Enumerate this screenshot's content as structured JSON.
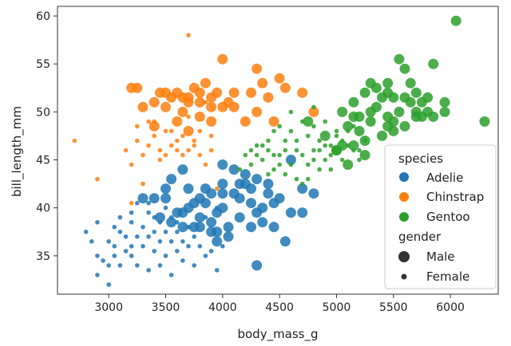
{
  "chart_data": {
    "type": "scatter",
    "xlabel": "body_mass_g",
    "ylabel": "bill_length_mm",
    "xlim": [
      2550,
      6420
    ],
    "ylim": [
      31,
      61
    ],
    "x_ticks": [
      3000,
      3500,
      4000,
      4500,
      5000,
      5500,
      6000
    ],
    "y_ticks": [
      35,
      40,
      45,
      50,
      55,
      60
    ],
    "legend": {
      "placement": "lower-right",
      "hue_title": "species",
      "size_title": "gender",
      "hue_entries": [
        {
          "name": "Adelie",
          "color": "#1f77b4"
        },
        {
          "name": "Chinstrap",
          "color": "#ff7f0e"
        },
        {
          "name": "Gentoo",
          "color": "#2ca02c"
        }
      ],
      "size_entries": [
        {
          "name": "Male",
          "size": "large"
        },
        {
          "name": "Female",
          "size": "small"
        }
      ]
    },
    "series": [
      {
        "name": "Adelie",
        "color": "#1f77b4",
        "male": [
          [
            3300,
            41.0
          ],
          [
            3400,
            41.0
          ],
          [
            3500,
            42.0
          ],
          [
            3550,
            38.5
          ],
          [
            3650,
            39.5
          ],
          [
            3700,
            42.0
          ],
          [
            3750,
            40.5
          ],
          [
            3800,
            38.0
          ],
          [
            3800,
            39.0
          ],
          [
            3850,
            40.5
          ],
          [
            3900,
            41.5
          ],
          [
            3900,
            38.5
          ],
          [
            3950,
            39.5
          ],
          [
            3950,
            37.5
          ],
          [
            4000,
            41.5
          ],
          [
            4000,
            40.0
          ],
          [
            4050,
            38.0
          ],
          [
            4100,
            41.5
          ],
          [
            4150,
            41.0
          ],
          [
            4200,
            42.5
          ],
          [
            4250,
            40.5
          ],
          [
            4300,
            39.5
          ],
          [
            4350,
            40.0
          ],
          [
            4400,
            42.5
          ],
          [
            4450,
            38.0
          ],
          [
            4500,
            41.0
          ],
          [
            4600,
            39.5
          ],
          [
            4700,
            42.0
          ],
          [
            3950,
            36.5
          ],
          [
            3550,
            43.0
          ],
          [
            4200,
            43.5
          ],
          [
            3650,
            44.0
          ],
          [
            4000,
            44.5
          ],
          [
            3450,
            39.0
          ],
          [
            4300,
            43.0
          ],
          [
            4050,
            37.0
          ],
          [
            4400,
            41.5
          ],
          [
            4550,
            36.5
          ],
          [
            4600,
            45.0
          ],
          [
            3850,
            42.0
          ],
          [
            3500,
            41.0
          ],
          [
            4150,
            39.0
          ],
          [
            4700,
            39.5
          ],
          [
            3900,
            37.5
          ],
          [
            4450,
            40.5
          ],
          [
            4250,
            42.0
          ],
          [
            4100,
            44.0
          ],
          [
            3700,
            40.0
          ],
          [
            4800,
            41.5
          ],
          [
            3650,
            38.0
          ],
          [
            4000,
            42.5
          ],
          [
            4350,
            38.5
          ],
          [
            3800,
            41.0
          ],
          [
            4150,
            42.5
          ],
          [
            4250,
            38.0
          ],
          [
            3600,
            39.5
          ],
          [
            3750,
            38.0
          ],
          [
            4300,
            34.0
          ]
        ],
        "female": [
          [
            2850,
            36.5
          ],
          [
            2900,
            35.0
          ],
          [
            2900,
            38.5
          ],
          [
            2950,
            34.5
          ],
          [
            3000,
            32.0
          ],
          [
            3000,
            36.5
          ],
          [
            3050,
            35.0
          ],
          [
            3050,
            38.0
          ],
          [
            3100,
            39.0
          ],
          [
            3150,
            37.0
          ],
          [
            3150,
            35.5
          ],
          [
            3200,
            38.5
          ],
          [
            3200,
            36.0
          ],
          [
            3250,
            37.0
          ],
          [
            3250,
            40.5
          ],
          [
            3300,
            36.0
          ],
          [
            3300,
            38.0
          ],
          [
            3350,
            39.5
          ],
          [
            3350,
            37.0
          ],
          [
            3400,
            35.5
          ],
          [
            3400,
            39.0
          ],
          [
            3450,
            36.5
          ],
          [
            3450,
            38.5
          ],
          [
            3500,
            37.5
          ],
          [
            3500,
            35.0
          ],
          [
            3550,
            39.0
          ],
          [
            3550,
            36.5
          ],
          [
            3600,
            37.5
          ],
          [
            3600,
            35.5
          ],
          [
            3650,
            36.5
          ],
          [
            3700,
            38.0
          ],
          [
            3700,
            36.0
          ],
          [
            3750,
            37.0
          ],
          [
            3800,
            36.0
          ],
          [
            3850,
            39.0
          ],
          [
            3900,
            35.5
          ],
          [
            3950,
            40.0
          ],
          [
            4000,
            36.0
          ],
          [
            2900,
            33.0
          ],
          [
            3000,
            34.0
          ],
          [
            3100,
            34.0
          ],
          [
            3200,
            35.0
          ],
          [
            3250,
            34.0
          ],
          [
            3350,
            33.5
          ],
          [
            3450,
            34.0
          ],
          [
            3550,
            33.0
          ],
          [
            3650,
            34.5
          ],
          [
            3750,
            34.0
          ],
          [
            3850,
            35.0
          ],
          [
            3950,
            33.5
          ],
          [
            3500,
            40.0
          ],
          [
            3350,
            40.5
          ],
          [
            3100,
            37.5
          ],
          [
            3200,
            39.5
          ],
          [
            3400,
            37.5
          ],
          [
            3600,
            38.5
          ],
          [
            2800,
            37.5
          ],
          [
            3050,
            36.0
          ]
        ]
      },
      {
        "name": "Chinstrap",
        "color": "#ff7f0e",
        "male": [
          [
            3250,
            52.5
          ],
          [
            3300,
            50.5
          ],
          [
            3450,
            52.0
          ],
          [
            3400,
            48.5
          ],
          [
            3500,
            50.5
          ],
          [
            3550,
            51.5
          ],
          [
            3600,
            49.0
          ],
          [
            3650,
            51.5
          ],
          [
            3700,
            51.5
          ],
          [
            3700,
            48.0
          ],
          [
            3750,
            52.5
          ],
          [
            3800,
            51.0
          ],
          [
            3800,
            49.5
          ],
          [
            3850,
            53.0
          ],
          [
            3900,
            50.5
          ],
          [
            3900,
            49.0
          ],
          [
            3950,
            52.0
          ],
          [
            4000,
            50.5
          ],
          [
            4000,
            55.5
          ],
          [
            4050,
            51.0
          ],
          [
            4100,
            50.5
          ],
          [
            4250,
            52.0
          ],
          [
            4300,
            50.0
          ],
          [
            4350,
            53.0
          ],
          [
            4400,
            51.5
          ],
          [
            4450,
            49.0
          ],
          [
            4500,
            53.5
          ],
          [
            4550,
            52.5
          ],
          [
            4700,
            52.0
          ],
          [
            4800,
            50.0
          ],
          [
            3400,
            51.0
          ],
          [
            3600,
            52.0
          ],
          [
            4200,
            49.0
          ],
          [
            3700,
            51.0
          ],
          [
            3650,
            50.0
          ],
          [
            3500,
            52.0
          ],
          [
            4100,
            52.0
          ],
          [
            4300,
            54.5
          ],
          [
            3200,
            52.5
          ],
          [
            3800,
            52.0
          ],
          [
            3900,
            51.5
          ]
        ],
        "female": [
          [
            2700,
            47.0
          ],
          [
            2900,
            43.0
          ],
          [
            3250,
            47.0
          ],
          [
            3300,
            45.5
          ],
          [
            3350,
            46.5
          ],
          [
            3400,
            47.5
          ],
          [
            3450,
            46.0
          ],
          [
            3500,
            45.5
          ],
          [
            3550,
            46.5
          ],
          [
            3600,
            47.0
          ],
          [
            3650,
            45.5
          ],
          [
            3700,
            46.0
          ],
          [
            3750,
            46.5
          ],
          [
            3800,
            45.5
          ],
          [
            3850,
            44.5
          ],
          [
            3900,
            46.0
          ],
          [
            3350,
            49.0
          ],
          [
            3450,
            45.0
          ],
          [
            3550,
            48.0
          ],
          [
            3650,
            47.5
          ],
          [
            3200,
            44.5
          ],
          [
            3250,
            48.5
          ],
          [
            3300,
            42.5
          ],
          [
            3700,
            49.5
          ],
          [
            3750,
            47.0
          ],
          [
            3800,
            48.0
          ],
          [
            3900,
            47.5
          ],
          [
            3200,
            40.5
          ],
          [
            3500,
            48.0
          ],
          [
            3700,
            58.0
          ],
          [
            3150,
            46.0
          ],
          [
            3400,
            49.0
          ],
          [
            3600,
            46.0
          ],
          [
            3950,
            42.0
          ],
          [
            3850,
            51.0
          ]
        ]
      },
      {
        "name": "Gentoo",
        "color": "#2ca02c",
        "male": [
          [
            4750,
            49.0
          ],
          [
            4900,
            47.5
          ],
          [
            5000,
            46.0
          ],
          [
            5050,
            46.5
          ],
          [
            5100,
            48.5
          ],
          [
            5150,
            46.5
          ],
          [
            5200,
            49.5
          ],
          [
            5250,
            47.0
          ],
          [
            5300,
            49.0
          ],
          [
            5350,
            50.5
          ],
          [
            5400,
            47.5
          ],
          [
            5450,
            49.5
          ],
          [
            5500,
            51.5
          ],
          [
            5500,
            48.0
          ],
          [
            5550,
            50.0
          ],
          [
            5600,
            54.5
          ],
          [
            5600,
            48.5
          ],
          [
            5650,
            51.0
          ],
          [
            5700,
            52.0
          ],
          [
            5700,
            49.5
          ],
          [
            5750,
            49.5
          ],
          [
            5800,
            50.0
          ],
          [
            5850,
            55.0
          ],
          [
            5950,
            50.0
          ],
          [
            6050,
            59.5
          ],
          [
            6300,
            49.0
          ],
          [
            5550,
            55.5
          ],
          [
            5450,
            53.0
          ],
          [
            5300,
            50.0
          ],
          [
            5000,
            46.0
          ],
          [
            5100,
            44.5
          ],
          [
            5250,
            45.5
          ],
          [
            5400,
            51.5
          ],
          [
            5150,
            51.0
          ],
          [
            5650,
            53.0
          ],
          [
            5750,
            51.0
          ],
          [
            5850,
            49.5
          ],
          [
            5950,
            51.0
          ],
          [
            5350,
            52.5
          ],
          [
            5250,
            52.0
          ],
          [
            5450,
            52.0
          ],
          [
            5600,
            51.5
          ],
          [
            5800,
            51.5
          ],
          [
            5200,
            48.0
          ],
          [
            5500,
            49.0
          ],
          [
            5050,
            50.0
          ],
          [
            5150,
            49.5
          ],
          [
            5300,
            53.0
          ],
          [
            5450,
            48.5
          ],
          [
            5700,
            50.0
          ]
        ],
        "female": [
          [
            4150,
            44.0
          ],
          [
            4200,
            45.5
          ],
          [
            4300,
            46.5
          ],
          [
            4350,
            45.0
          ],
          [
            4400,
            46.0
          ],
          [
            4450,
            44.0
          ],
          [
            4500,
            45.5
          ],
          [
            4550,
            47.0
          ],
          [
            4600,
            44.5
          ],
          [
            4650,
            46.0
          ],
          [
            4700,
            45.5
          ],
          [
            4750,
            47.5
          ],
          [
            4800,
            46.0
          ],
          [
            4850,
            47.0
          ],
          [
            4900,
            45.0
          ],
          [
            4950,
            46.5
          ],
          [
            5000,
            47.5
          ],
          [
            5050,
            45.0
          ],
          [
            5100,
            46.5
          ],
          [
            5150,
            46.0
          ],
          [
            5200,
            45.0
          ],
          [
            5250,
            47.0
          ],
          [
            4400,
            43.5
          ],
          [
            4550,
            43.5
          ],
          [
            4650,
            43.0
          ],
          [
            4750,
            43.0
          ],
          [
            4850,
            44.0
          ],
          [
            4950,
            45.5
          ],
          [
            4300,
            45.5
          ],
          [
            4500,
            48.5
          ],
          [
            4600,
            48.0
          ],
          [
            4700,
            49.0
          ],
          [
            4800,
            48.5
          ],
          [
            4900,
            49.0
          ],
          [
            5000,
            48.0
          ],
          [
            5100,
            48.0
          ],
          [
            4450,
            48.0
          ],
          [
            4250,
            44.5
          ],
          [
            4350,
            46.5
          ],
          [
            4650,
            47.0
          ],
          [
            5200,
            46.0
          ],
          [
            4400,
            47.0
          ],
          [
            4550,
            46.0
          ],
          [
            4750,
            44.5
          ],
          [
            4850,
            46.0
          ],
          [
            4950,
            44.0
          ],
          [
            5050,
            47.0
          ],
          [
            4600,
            50.0
          ],
          [
            4800,
            50.5
          ],
          [
            4700,
            42.5
          ],
          [
            4500,
            44.5
          ],
          [
            4250,
            46.0
          ],
          [
            4900,
            46.5
          ],
          [
            4450,
            45.5
          ],
          [
            5150,
            48.5
          ],
          [
            4800,
            45.0
          ]
        ]
      }
    ]
  }
}
